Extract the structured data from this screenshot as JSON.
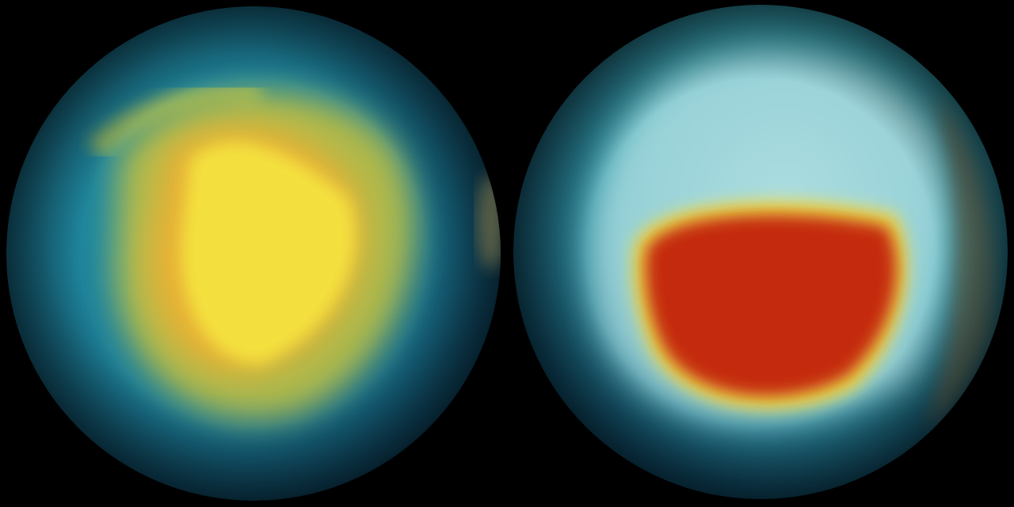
{
  "scene": {
    "background_color": "#000000",
    "globes": [
      {
        "name": "left-globe",
        "ocean_color": "#1a6f8a",
        "band_color": "#c9c23a",
        "core_color": "#f2e23a"
      },
      {
        "name": "right-globe",
        "ocean_color": "#2a8fa0",
        "ice_color": "#a9dde0",
        "core_color": "#c22a08",
        "rim_color": "#f2e040"
      }
    ]
  }
}
